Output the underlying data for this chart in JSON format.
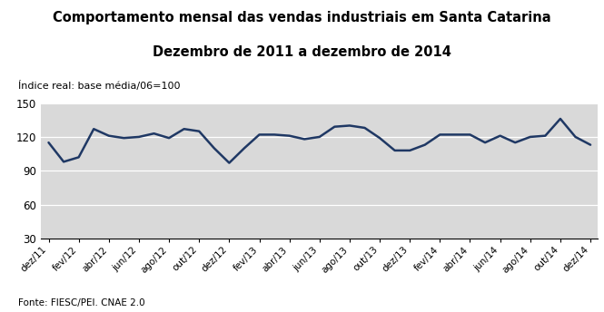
{
  "title_line1": "Comportamento mensal das vendas industriais em Santa Catarina",
  "title_line2": "Dezembro de 2011 a dezembro de 2014",
  "subtitle": "Índice real: base média/06=100",
  "fonte": "Fonte: FIESC/PEI. CNAE 2.0",
  "line_color": "#1F3864",
  "bg_color": "#D9D9D9",
  "ylim": [
    30,
    150
  ],
  "yticks": [
    30,
    60,
    90,
    120,
    150
  ],
  "tick_labels": [
    "dez/11",
    "fev/12",
    "abr/12",
    "jun/12",
    "ago/12",
    "out/12",
    "dez/12",
    "fev/13",
    "abr/13",
    "jun/13",
    "ago/13",
    "out/13",
    "dez/13",
    "fev/14",
    "abr/14",
    "jun/14",
    "ago/14",
    "out/14",
    "dez/14"
  ],
  "values": [
    115,
    98,
    102,
    127,
    121,
    119,
    120,
    123,
    119,
    127,
    125,
    110,
    97,
    110,
    122,
    122,
    121,
    118,
    120,
    129,
    130,
    128,
    119,
    108,
    108,
    113,
    122,
    122,
    122,
    115,
    121,
    115,
    120,
    121,
    136,
    120,
    113
  ]
}
